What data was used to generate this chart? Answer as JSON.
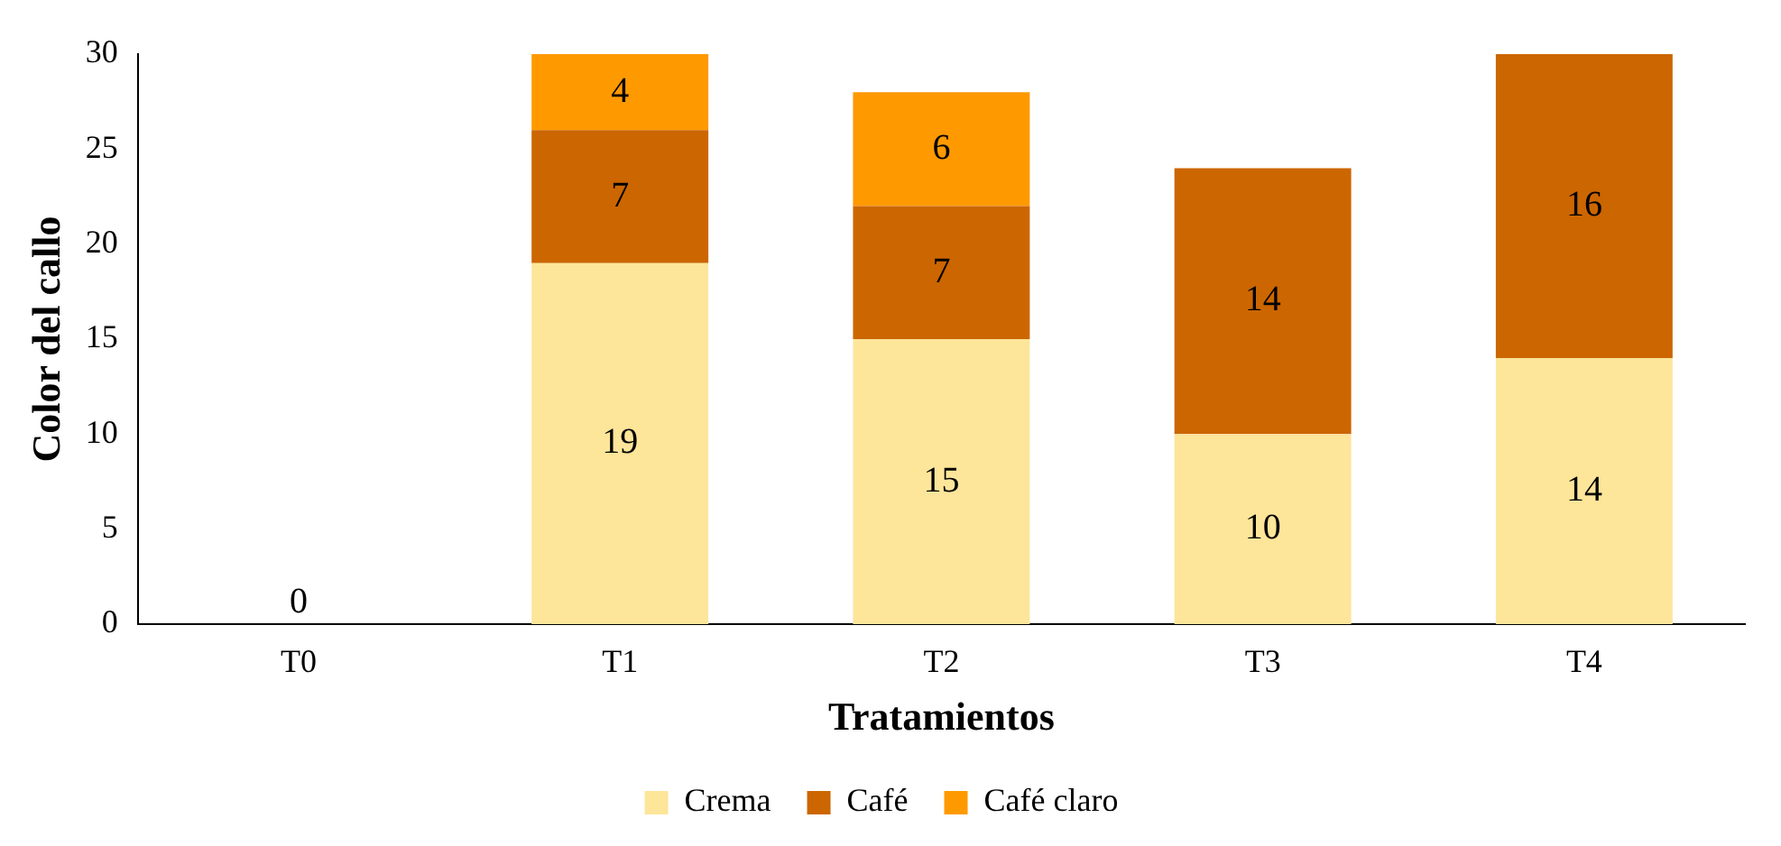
{
  "chart_data": {
    "type": "bar",
    "stacked": true,
    "xlabel": "Tratamientos",
    "ylabel": "Color del callo",
    "categories": [
      "T0",
      "T1",
      "T2",
      "T3",
      "T4"
    ],
    "series": [
      {
        "name": "Crema",
        "color": "#fde59a",
        "values": [
          0,
          19,
          15,
          10,
          14
        ],
        "value_labels": [
          null,
          "19",
          "15",
          "10",
          "14"
        ]
      },
      {
        "name": "Café",
        "color": "#cc6600",
        "values": [
          0,
          7,
          7,
          14,
          16
        ],
        "value_labels": [
          "0",
          "7",
          "7",
          "14",
          "16"
        ]
      },
      {
        "name": "Café claro",
        "color": "#ff9900",
        "values": [
          0,
          4,
          6,
          0,
          0
        ],
        "value_labels": [
          null,
          "4",
          "6",
          null,
          null
        ]
      }
    ],
    "ylim": [
      0,
      30
    ],
    "yticks": [
      0,
      5,
      10,
      15,
      20,
      25,
      30
    ],
    "grid": false,
    "legend": "bottom"
  }
}
